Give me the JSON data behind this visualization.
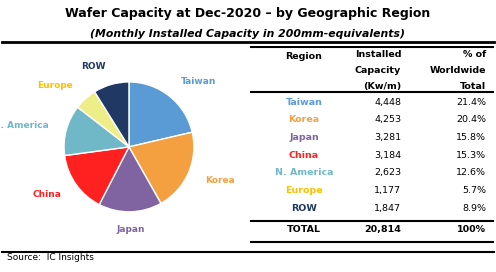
{
  "title1": "Wafer Capacity at Dec-2020 – by Geographic Region",
  "title2": "(Monthly Installed Capacity in 200mm-equivalents)",
  "source": "Source:  IC Insights",
  "regions": [
    "Taiwan",
    "Korea",
    "Japan",
    "China",
    "N. America",
    "Europe",
    "ROW"
  ],
  "values": [
    4448,
    4253,
    3281,
    3184,
    2623,
    1177,
    1847
  ],
  "percents": [
    "21.4%",
    "20.4%",
    "15.8%",
    "15.3%",
    "12.6%",
    "5.7%",
    "8.9%"
  ],
  "pie_colors": [
    "#5B9BD5",
    "#F4A040",
    "#8064A2",
    "#FF2020",
    "#70B8C8",
    "#EEEE88",
    "#1F3864"
  ],
  "pie_label_colors": [
    "#5B9BD5",
    "#F4A040",
    "#8064A2",
    "#FF2020",
    "#70B8C8",
    "#FFC000",
    "#1F3864"
  ],
  "table_region_colors": [
    "#5B9BD5",
    "#F4A040",
    "#8064A2",
    "#FF2020",
    "#70B8C8",
    "#FFC000",
    "#1F3864"
  ],
  "total_value": "20,814",
  "total_percent": "100%",
  "background_color": "#FFFFFF"
}
